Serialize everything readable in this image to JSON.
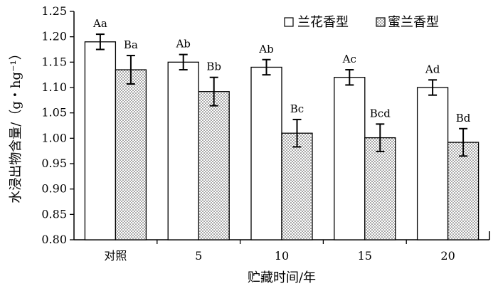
{
  "chart_data": {
    "type": "bar",
    "categories": [
      "对照",
      "5",
      "10",
      "15",
      "20"
    ],
    "series": [
      {
        "name": "兰花香型",
        "values": [
          1.19,
          1.15,
          1.14,
          1.12,
          1.1
        ],
        "errors": [
          0.015,
          0.015,
          0.015,
          0.015,
          0.015
        ],
        "labels": [
          "Aa",
          "Ab",
          "Ab",
          "Ac",
          "Ad"
        ],
        "fill": "#ffffff"
      },
      {
        "name": "蜜兰香型",
        "values": [
          1.135,
          1.092,
          1.01,
          1.001,
          0.992
        ],
        "errors": [
          0.028,
          0.028,
          0.027,
          0.027,
          0.027
        ],
        "labels": [
          "Ba",
          "Bb",
          "Bc",
          "Bcd",
          "Bd"
        ],
        "fill": "dotted"
      }
    ],
    "ylim": [
      0.8,
      1.25
    ],
    "yticks": [
      "0.80",
      "0.85",
      "0.90",
      "0.95",
      "1.00",
      "1.05",
      "1.10",
      "1.15",
      "1.20",
      "1.25"
    ],
    "xlabel": "贮藏时间/年",
    "ylabel": "水浸出物含量/（g・hg⁻¹）",
    "legend_position": "top-right",
    "grid": false
  }
}
